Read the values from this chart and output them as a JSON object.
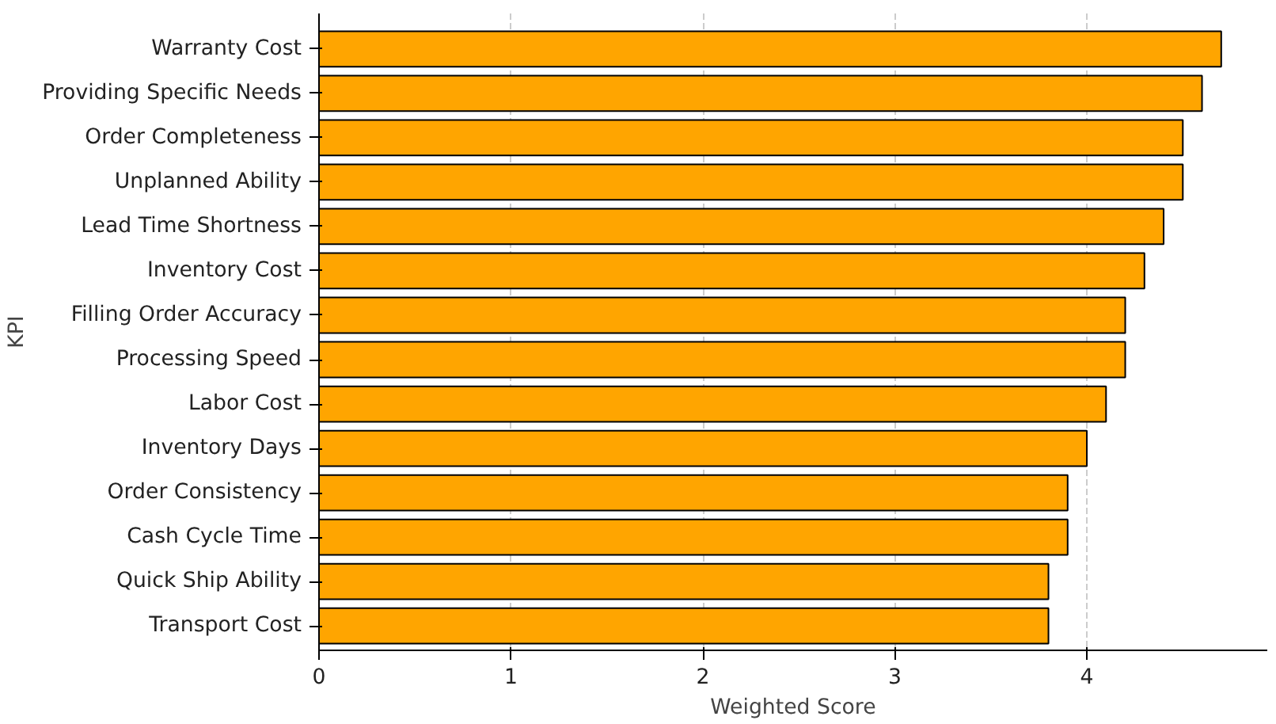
{
  "chart_data": {
    "type": "bar",
    "orientation": "horizontal",
    "xlabel": "Weighted Score",
    "ylabel": "KPI",
    "categories": [
      "Warranty Cost",
      "Providing Specific Needs",
      "Order Completeness",
      "Unplanned Ability",
      "Lead Time Shortness",
      "Inventory Cost",
      "Filling Order Accuracy",
      "Processing Speed",
      "Labor Cost",
      "Inventory Days",
      "Order Consistency",
      "Cash Cycle Time",
      "Quick Ship Ability",
      "Transport Cost"
    ],
    "values": [
      4.7,
      4.6,
      4.5,
      4.5,
      4.4,
      4.3,
      4.2,
      4.2,
      4.1,
      4.0,
      3.9,
      3.9,
      3.8,
      3.8
    ],
    "color": "#ffa500",
    "xlim": [
      0,
      4.94
    ],
    "xticks": [
      0,
      1,
      2,
      3,
      4
    ],
    "grid": "x"
  }
}
